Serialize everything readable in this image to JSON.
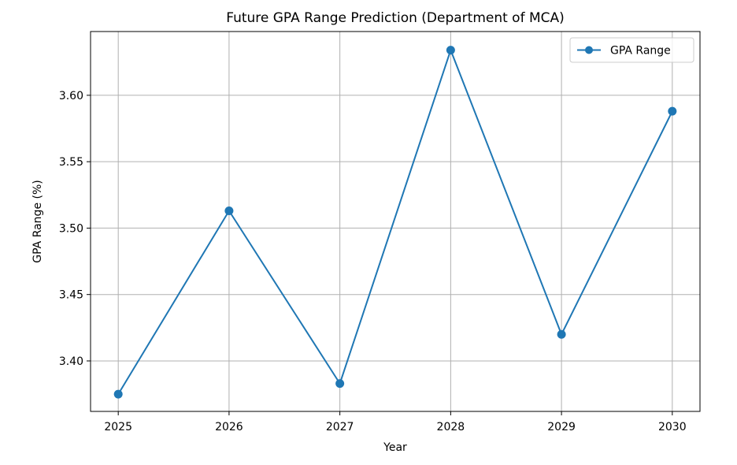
{
  "chart_data": {
    "type": "line",
    "title": "Future GPA Range Prediction (Department of MCA)",
    "xlabel": "Year",
    "ylabel": "GPA Range (%)",
    "x": [
      2025,
      2026,
      2027,
      2028,
      2029,
      2030
    ],
    "series": [
      {
        "name": "GPA Range",
        "values": [
          3.375,
          3.513,
          3.383,
          3.634,
          3.42,
          3.588
        ],
        "color": "#1f77b4"
      }
    ],
    "x_ticks": [
      "2025",
      "2026",
      "2027",
      "2028",
      "2029",
      "2030"
    ],
    "y_ticks": [
      "3.40",
      "3.45",
      "3.50",
      "3.55",
      "3.60"
    ],
    "xlim": [
      2024.75,
      2030.25
    ],
    "ylim": [
      3.362,
      3.648
    ],
    "grid": true,
    "legend_position": "top-right"
  }
}
